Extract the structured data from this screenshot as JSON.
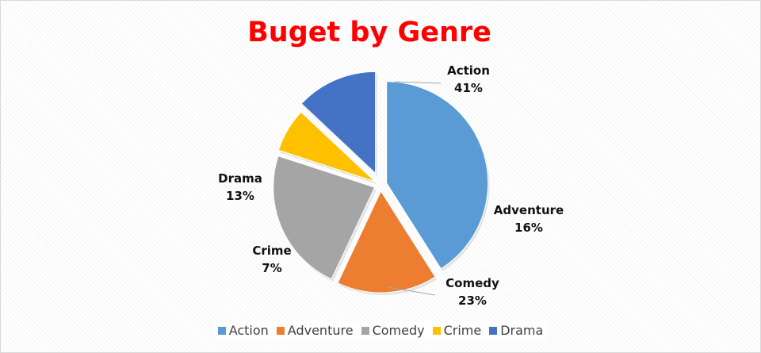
{
  "chart_data": {
    "type": "pie",
    "title": "Buget by Genre",
    "categories": [
      "Action",
      "Adventure",
      "Comedy",
      "Crime",
      "Drama"
    ],
    "values": [
      41,
      16,
      23,
      7,
      13
    ],
    "labels": [
      "41%",
      "16%",
      "23%",
      "7%",
      "13%"
    ],
    "colors": [
      "#5b9bd5",
      "#ed7d31",
      "#a5a5a5",
      "#ffc000",
      "#4472c4"
    ],
    "legend_position": "bottom",
    "exploded": true
  },
  "colors": {
    "title": "#ff0000"
  }
}
